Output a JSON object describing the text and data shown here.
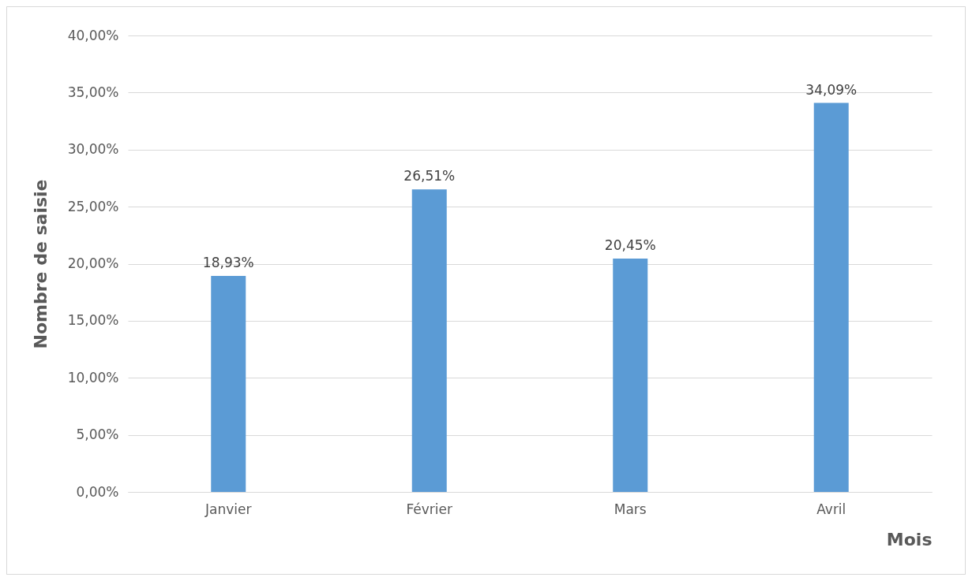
{
  "chart_data": {
    "type": "bar",
    "xlabel": "Mois",
    "ylabel": "Nombre de saisie",
    "categories": [
      "Janvier",
      "Février",
      "Mars",
      "Avril"
    ],
    "values": [
      18.93,
      26.51,
      20.45,
      34.09
    ],
    "value_labels": [
      "18,93%",
      "26,51%",
      "20,45%",
      "34,09%"
    ],
    "color": "#5b9bd5",
    "ylim": [
      0,
      40
    ],
    "yticks": [
      {
        "value": 0,
        "label": "0,00%"
      },
      {
        "value": 5,
        "label": "5,00%"
      },
      {
        "value": 10,
        "label": "10,00%"
      },
      {
        "value": 15,
        "label": "15,00%"
      },
      {
        "value": 20,
        "label": "20,00%"
      },
      {
        "value": 25,
        "label": "25,00%"
      },
      {
        "value": 30,
        "label": "30,00%"
      },
      {
        "value": 35,
        "label": "35,00%"
      },
      {
        "value": 40,
        "label": "40,00%"
      }
    ],
    "grid": "y"
  }
}
